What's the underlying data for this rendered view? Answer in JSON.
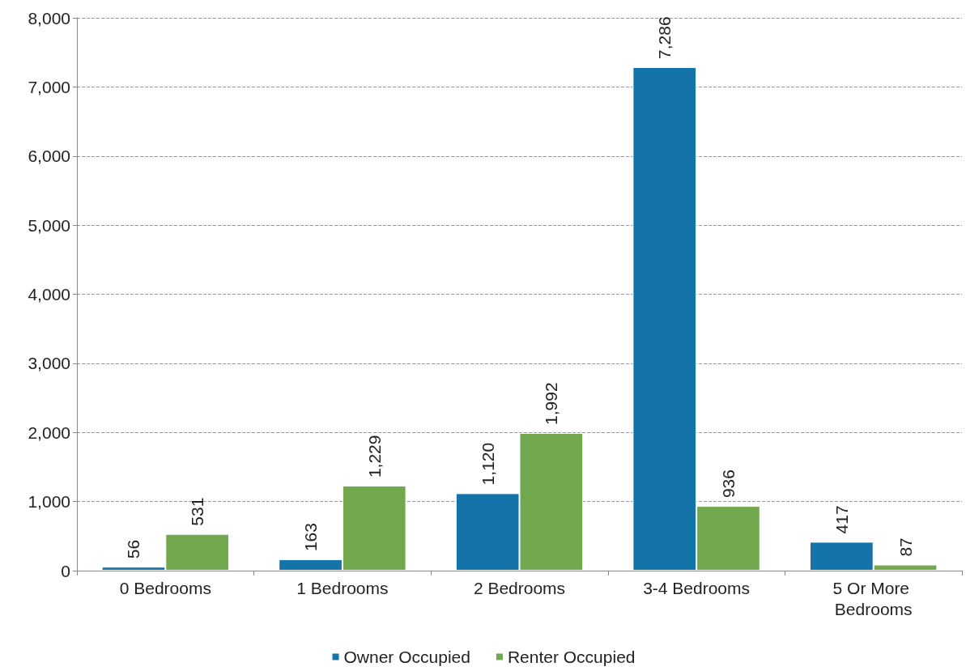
{
  "chart_data": {
    "type": "bar",
    "categories": [
      "0 Bedrooms",
      "1 Bedrooms",
      "2 Bedrooms",
      "3-4 Bedrooms",
      "5 Or More Bedrooms"
    ],
    "series": [
      {
        "name": "Owner Occupied",
        "color": "#1473a9",
        "values": [
          56,
          163,
          1120,
          7286,
          417
        ],
        "value_labels": [
          "56",
          "163",
          "1,120",
          "7,286",
          "417"
        ]
      },
      {
        "name": "Renter Occupied",
        "color": "#71a84d",
        "values": [
          531,
          1229,
          1992,
          936,
          87
        ],
        "value_labels": [
          "531",
          "1,229",
          "1,992",
          "936",
          "87"
        ]
      }
    ],
    "ylim": [
      0,
      8000
    ],
    "yticks": [
      0,
      {
        "value": 1000,
        "label": "1,000"
      },
      {
        "value": 2000,
        "label": "2,000"
      },
      {
        "value": 3000,
        "label": "3,000"
      },
      {
        "value": 4000,
        "label": "4,000"
      },
      {
        "value": 5000,
        "label": "5,000"
      },
      {
        "value": 6000,
        "label": "6,000"
      },
      {
        "value": 7000,
        "label": "7,000"
      },
      {
        "value": 8000,
        "label": "8,000"
      }
    ],
    "grid": "y",
    "legend": "bottom"
  }
}
